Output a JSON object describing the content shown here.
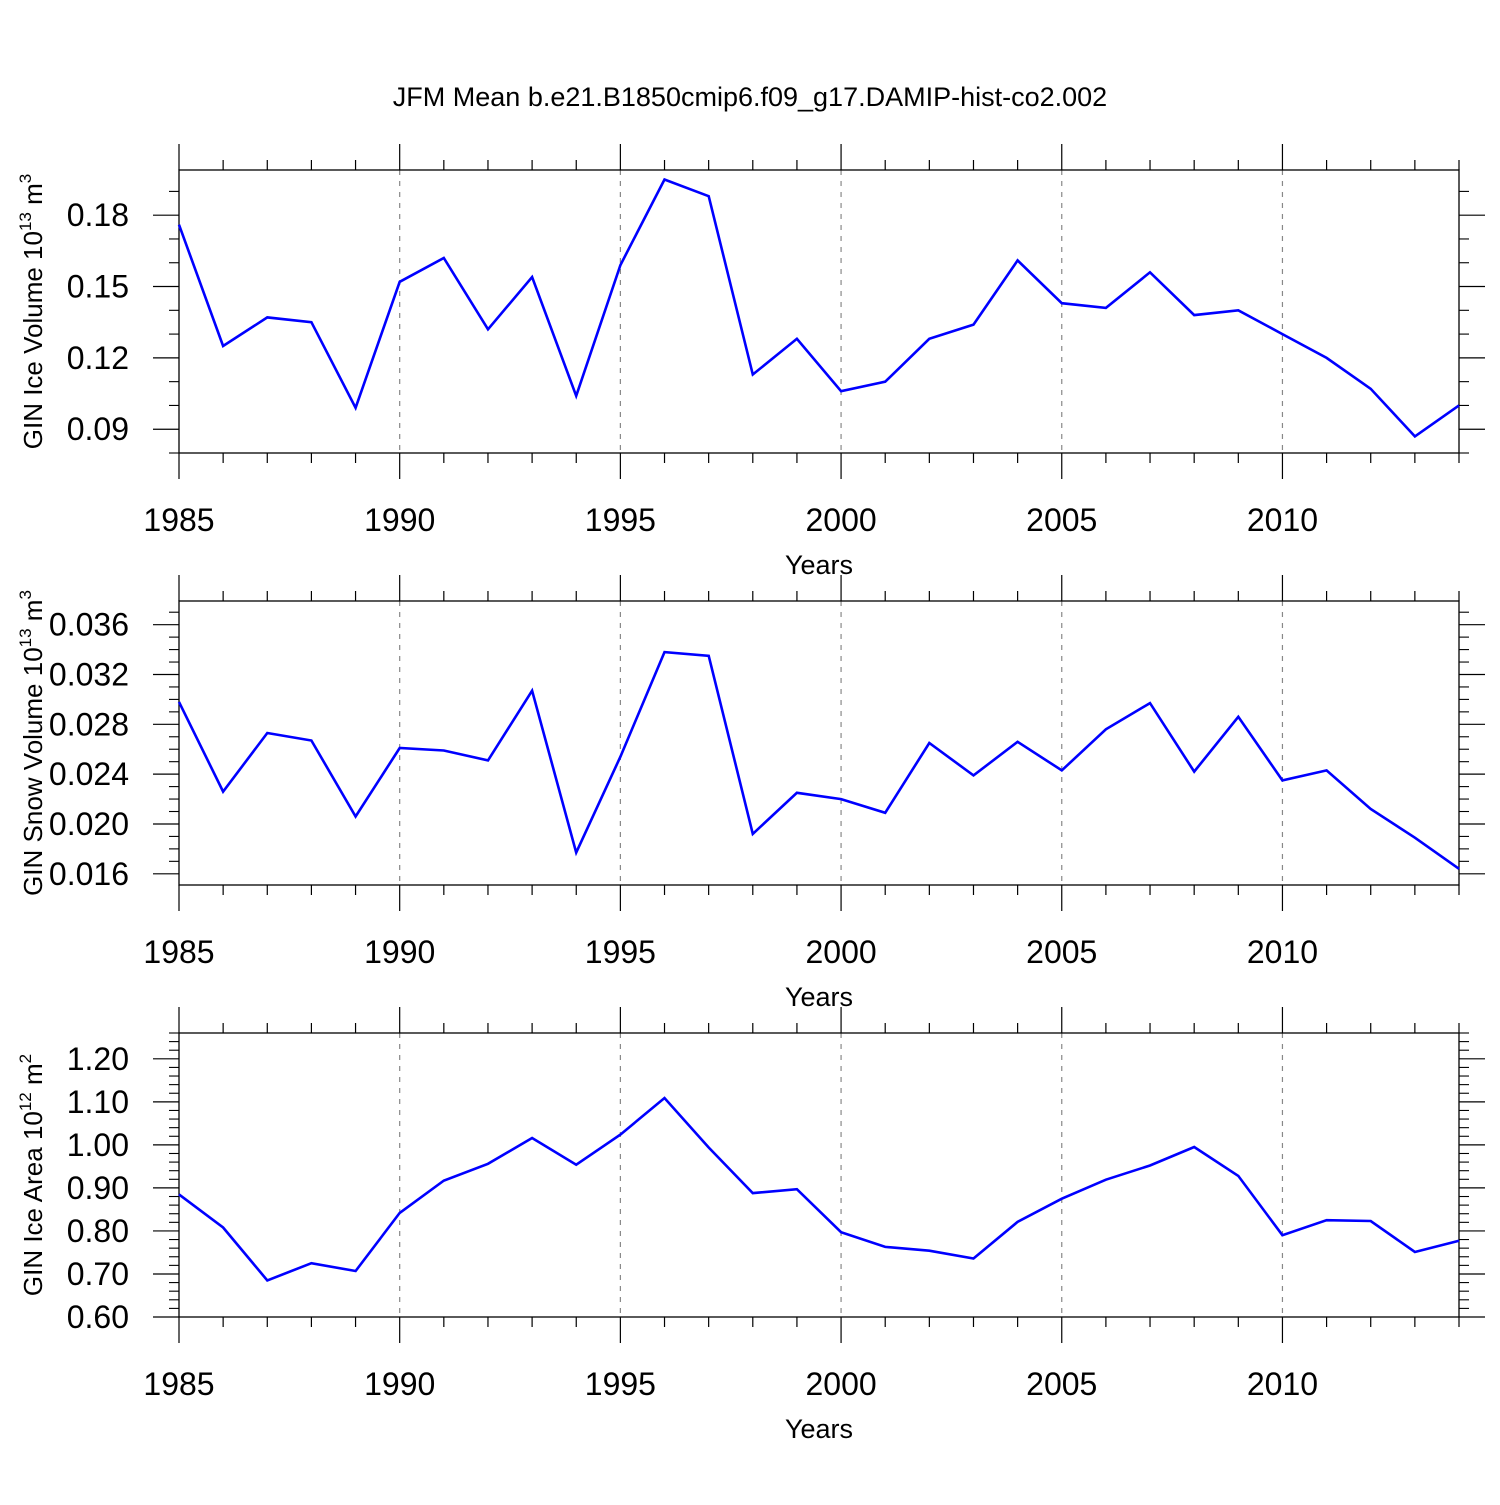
{
  "title": "JFM Mean b.e21.B1850cmip6.f09_g17.DAMIP-hist-co2.002",
  "colors": {
    "line": "#0000ff",
    "axis": "#000000",
    "grid": "#888888"
  },
  "chart_data": [
    {
      "type": "line",
      "ylabel_main": "GIN Ice Volume 10",
      "ylabel_exp": "13",
      "ylabel_unit": "m",
      "ylabel_unit_exp": "3",
      "xlabel": "Years",
      "xlim": [
        1985,
        2014
      ],
      "ylim": [
        0.08,
        0.199
      ],
      "yticks": [
        0.09,
        0.12,
        0.15,
        0.18
      ],
      "ytick_labels": [
        "0.09",
        "0.12",
        "0.15",
        "0.18"
      ],
      "yminor_step": 0.01,
      "xticks": [
        1985,
        1990,
        1995,
        2000,
        2005,
        2010
      ],
      "xtick_labels": [
        "1985",
        "1990",
        "1995",
        "2000",
        "2005",
        "2010"
      ],
      "grid_x": [
        1990,
        1995,
        2000,
        2005,
        2010
      ],
      "x": [
        1985,
        1986,
        1987,
        1988,
        1989,
        1990,
        1991,
        1992,
        1993,
        1994,
        1995,
        1996,
        1997,
        1998,
        1999,
        2000,
        2001,
        2002,
        2003,
        2004,
        2005,
        2006,
        2007,
        2008,
        2009,
        2010,
        2011,
        2012,
        2013,
        2014
      ],
      "series": [
        {
          "name": "GIN Ice Volume",
          "values": [
            0.176,
            0.125,
            0.137,
            0.135,
            0.099,
            0.152,
            0.162,
            0.132,
            0.154,
            0.104,
            0.159,
            0.195,
            0.188,
            0.113,
            0.128,
            0.106,
            0.11,
            0.128,
            0.134,
            0.161,
            0.143,
            0.141,
            0.156,
            0.138,
            0.14,
            0.13,
            0.12,
            0.107,
            0.087,
            0.1
          ]
        }
      ]
    },
    {
      "type": "line",
      "ylabel_main": "GIN Snow Volume 10",
      "ylabel_exp": "13",
      "ylabel_unit": "m",
      "ylabel_unit_exp": "3",
      "xlabel": "Years",
      "xlim": [
        1985,
        2014
      ],
      "ylim": [
        0.0151,
        0.0379
      ],
      "yticks": [
        0.016,
        0.02,
        0.024,
        0.028,
        0.032,
        0.036
      ],
      "ytick_labels": [
        "0.016",
        "0.020",
        "0.024",
        "0.028",
        "0.032",
        "0.036"
      ],
      "yminor_step": 0.001,
      "xticks": [
        1985,
        1990,
        1995,
        2000,
        2005,
        2010
      ],
      "xtick_labels": [
        "1985",
        "1990",
        "1995",
        "2000",
        "2005",
        "2010"
      ],
      "grid_x": [
        1990,
        1995,
        2000,
        2005,
        2010
      ],
      "x": [
        1985,
        1986,
        1987,
        1988,
        1989,
        1990,
        1991,
        1992,
        1993,
        1994,
        1995,
        1996,
        1997,
        1998,
        1999,
        2000,
        2001,
        2002,
        2003,
        2004,
        2005,
        2006,
        2007,
        2008,
        2009,
        2010,
        2011,
        2012,
        2013,
        2014
      ],
      "series": [
        {
          "name": "GIN Snow Volume",
          "values": [
            0.0298,
            0.0226,
            0.0273,
            0.0267,
            0.0206,
            0.0261,
            0.0259,
            0.0251,
            0.0307,
            0.0177,
            0.0254,
            0.0338,
            0.0335,
            0.0192,
            0.0225,
            0.022,
            0.0209,
            0.0265,
            0.0239,
            0.0266,
            0.0243,
            0.0276,
            0.0297,
            0.0242,
            0.0286,
            0.0235,
            0.0243,
            0.0212,
            0.0189,
            0.0164
          ]
        }
      ]
    },
    {
      "type": "line",
      "ylabel_main": "GIN Ice Area 10",
      "ylabel_exp": "12",
      "ylabel_unit": "m",
      "ylabel_unit_exp": "2",
      "xlabel": "Years",
      "xlim": [
        1985,
        2014
      ],
      "ylim": [
        0.6,
        1.26
      ],
      "yticks": [
        0.6,
        0.7,
        0.8,
        0.9,
        1.0,
        1.1,
        1.2
      ],
      "ytick_labels": [
        "0.60",
        "0.70",
        "0.80",
        "0.90",
        "1.00",
        "1.10",
        "1.20"
      ],
      "yminor_step": 0.02,
      "xticks": [
        1985,
        1990,
        1995,
        2000,
        2005,
        2010
      ],
      "xtick_labels": [
        "1985",
        "1990",
        "1995",
        "2000",
        "2005",
        "2010"
      ],
      "grid_x": [
        1990,
        1995,
        2000,
        2005,
        2010
      ],
      "x": [
        1985,
        1986,
        1987,
        1988,
        1989,
        1990,
        1991,
        1992,
        1993,
        1994,
        1995,
        1996,
        1997,
        1998,
        1999,
        2000,
        2001,
        2002,
        2003,
        2004,
        2005,
        2006,
        2007,
        2008,
        2009,
        2010,
        2011,
        2012,
        2013,
        2014
      ],
      "series": [
        {
          "name": "GIN Ice Area",
          "values": [
            0.885,
            0.808,
            0.685,
            0.725,
            0.707,
            0.842,
            0.917,
            0.956,
            1.016,
            0.954,
            1.024,
            1.109,
            0.994,
            0.888,
            0.897,
            0.797,
            0.763,
            0.754,
            0.736,
            0.821,
            0.875,
            0.919,
            0.952,
            0.995,
            0.928,
            0.79,
            0.825,
            0.823,
            0.751,
            0.777
          ]
        }
      ]
    }
  ]
}
